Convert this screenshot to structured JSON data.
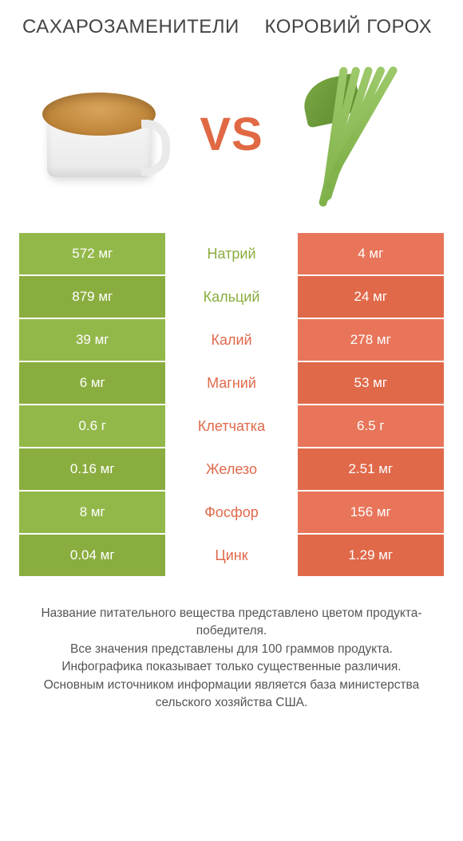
{
  "header": {
    "left_title": "Сахарозаменители",
    "right_title": "Коровий горох",
    "vs_label": "VS"
  },
  "colors": {
    "left": "#8aad3f",
    "left_stripe": "#93b84a",
    "right": "#e0694a",
    "right_stripe": "#e8755a",
    "vs": "#e06944",
    "footer_text": "#555555"
  },
  "rows": [
    {
      "left": "572 мг",
      "label": "Натрий",
      "right": "4 мг",
      "winner": "left"
    },
    {
      "left": "879 мг",
      "label": "Кальций",
      "right": "24 мг",
      "winner": "left"
    },
    {
      "left": "39 мг",
      "label": "Калий",
      "right": "278 мг",
      "winner": "right"
    },
    {
      "left": "6 мг",
      "label": "Магний",
      "right": "53 мг",
      "winner": "right"
    },
    {
      "left": "0.6 г",
      "label": "Клетчатка",
      "right": "6.5 г",
      "winner": "right"
    },
    {
      "left": "0.16 мг",
      "label": "Железо",
      "right": "2.51 мг",
      "winner": "right"
    },
    {
      "left": "8 мг",
      "label": "Фосфор",
      "right": "156 мг",
      "winner": "right"
    },
    {
      "left": "0.04 мг",
      "label": "Цинк",
      "right": "1.29 мг",
      "winner": "right"
    }
  ],
  "footer": {
    "line1": "Название питательного вещества представлено цветом продукта-победителя.",
    "line2": "Все значения представлены для 100 граммов продукта.",
    "line3": "Инфографика показывает только существенные различия.",
    "line4": "Основным источником информации является база министерства сельского хозяйства США."
  }
}
